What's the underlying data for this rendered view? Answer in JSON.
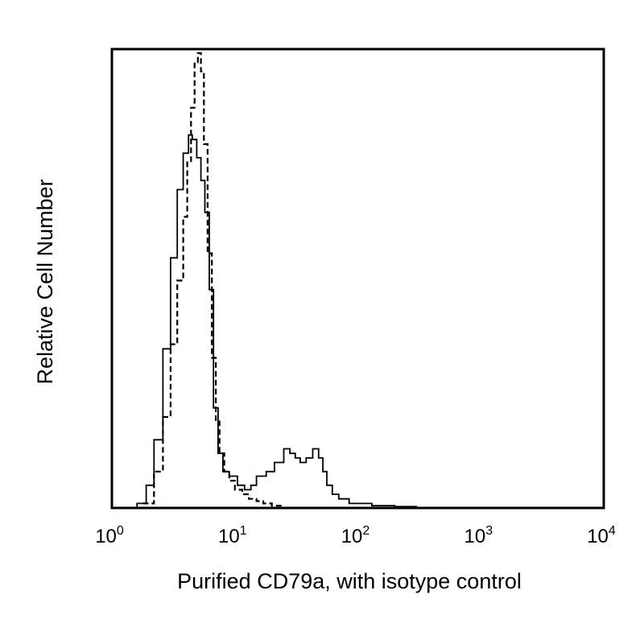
{
  "chart_data": {
    "type": "line",
    "title": "",
    "xlabel": "Purified CD79a, with isotype control",
    "ylabel": "Relative Cell Number",
    "x_scale": "log",
    "xlim": [
      1,
      10000
    ],
    "ylim": [
      0,
      100
    ],
    "x_ticks": [
      {
        "base": "10",
        "exp": "0",
        "value": 1
      },
      {
        "base": "10",
        "exp": "1",
        "value": 10
      },
      {
        "base": "10",
        "exp": "2",
        "value": 100
      },
      {
        "base": "10",
        "exp": "3",
        "value": 1000
      },
      {
        "base": "10",
        "exp": "4",
        "value": 10000
      }
    ],
    "grid": false,
    "legend": "none",
    "series": [
      {
        "style": "solid",
        "color": "#000000",
        "x": [
          1.0,
          1.3,
          1.6,
          1.9,
          2.2,
          2.6,
          3.0,
          3.4,
          3.8,
          4.2,
          4.5,
          4.9,
          5.3,
          5.7,
          6.2,
          6.7,
          7.3,
          8.0,
          9.0,
          10.5,
          12.0,
          13.5,
          15,
          18,
          21,
          25,
          28,
          31,
          34,
          38,
          43,
          48,
          52,
          56,
          62,
          70,
          85,
          100,
          130,
          200,
          300,
          1000,
          10000
        ],
        "y": [
          0,
          0,
          1,
          5,
          15,
          35,
          55,
          70,
          78,
          82,
          81,
          77,
          72,
          65,
          48,
          22,
          12,
          8,
          7,
          5,
          4,
          5,
          7,
          8,
          10,
          13,
          12,
          11,
          10,
          11,
          13,
          11,
          8,
          5,
          3,
          2,
          1,
          1,
          0.5,
          0.3,
          0,
          0,
          0
        ]
      },
      {
        "style": "dashed",
        "color": "#000000",
        "x": [
          1.0,
          1.4,
          1.8,
          2.2,
          2.6,
          3.0,
          3.4,
          3.8,
          4.1,
          4.4,
          4.7,
          5.0,
          5.3,
          5.6,
          6.0,
          6.5,
          7.0,
          7.5,
          8.2,
          9.0,
          10.0,
          11.5,
          13,
          15,
          17,
          20,
          25,
          30,
          40,
          60,
          100,
          1000,
          10000
        ],
        "y": [
          0,
          0,
          1,
          8,
          20,
          36,
          50,
          64,
          76,
          88,
          98,
          100,
          96,
          80,
          56,
          33,
          19,
          12,
          8,
          6,
          4,
          3,
          2,
          1.5,
          1,
          0.5,
          0,
          0,
          0,
          0,
          0,
          0,
          0
        ]
      }
    ]
  }
}
